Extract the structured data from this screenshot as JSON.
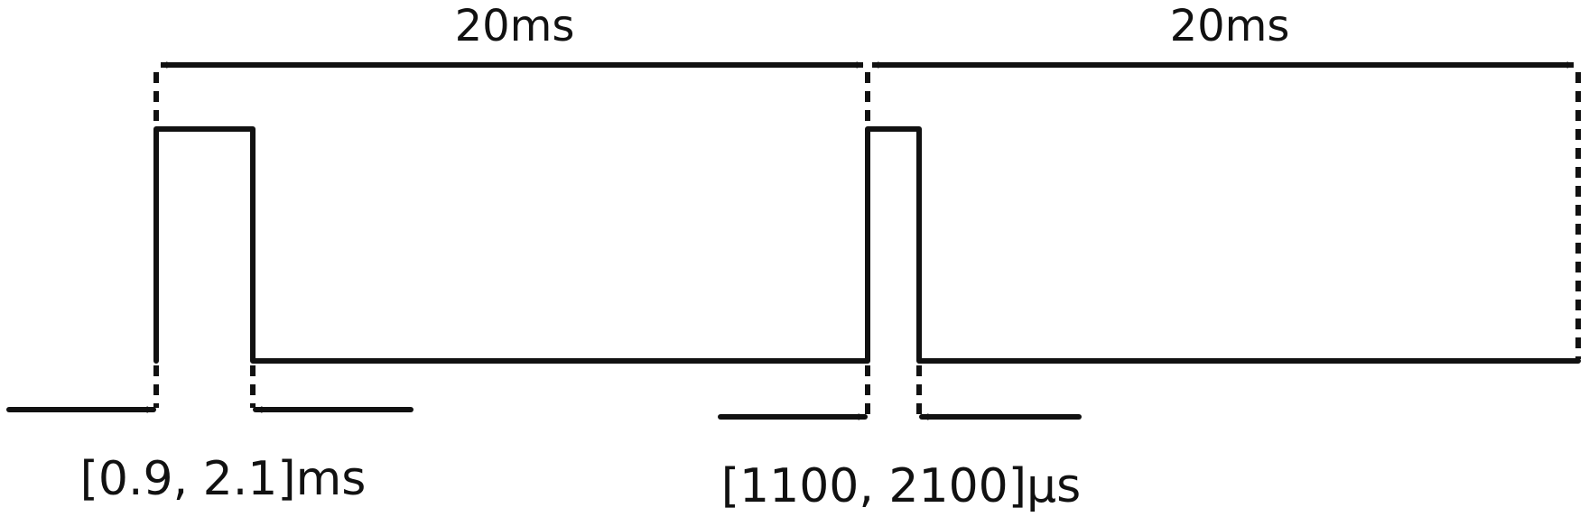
{
  "period_labels": {
    "first": "20ms",
    "second": "20ms"
  },
  "pulse_width_labels": {
    "first": "[0.9, 2.1]ms",
    "second": "[1100, 2100]µs"
  },
  "colors": {
    "line": "#111111",
    "background": "#ffffff"
  }
}
